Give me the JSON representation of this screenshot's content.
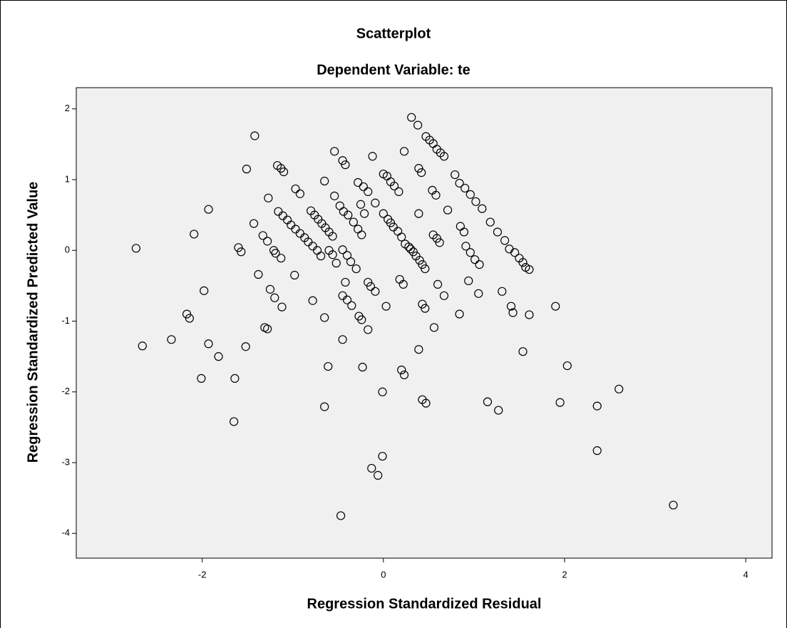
{
  "chart_data": {
    "type": "scatter",
    "title": "Scatterplot",
    "subtitle": "Dependent Variable: te",
    "x_label": "Regression Standardized Residual",
    "y_label": "Regression Standardized Predicted Value",
    "color": "#000000",
    "background": "#f0f0f0",
    "grid": false,
    "xlim": [
      -3.39,
      4.29
    ],
    "ylim": [
      -4.35,
      2.3
    ],
    "xticks": [
      -2,
      0,
      2,
      4
    ],
    "yticks": [
      -4,
      -3,
      -2,
      -1,
      0,
      1,
      2
    ],
    "x": [
      -2.73,
      -2.66,
      -2.34,
      -2.09,
      -1.93,
      -2.17,
      -2.14,
      -1.98,
      -1.93,
      -1.82,
      -2.01,
      -1.64,
      -1.65,
      -1.52,
      -1.6,
      -1.57,
      -1.42,
      -1.51,
      -1.43,
      -1.38,
      -1.33,
      -1.28,
      -1.27,
      -1.25,
      -1.2,
      -1.12,
      -1.31,
      -1.28,
      -1.21,
      -1.19,
      -1.13,
      -1.17,
      -1.13,
      -1.1,
      -1.16,
      -1.11,
      -1.06,
      -1.02,
      -0.97,
      -0.92,
      -0.87,
      -0.83,
      -0.78,
      -0.73,
      -0.69,
      -0.98,
      -0.97,
      -0.92,
      -0.78,
      -0.8,
      -0.76,
      -0.72,
      -0.68,
      -0.64,
      -0.6,
      -0.56,
      -0.6,
      -0.56,
      -0.52,
      -0.65,
      -0.54,
      -0.45,
      -0.42,
      -0.65,
      -0.61,
      -0.65,
      -0.45,
      -0.47,
      -0.54,
      -0.48,
      -0.44,
      -0.39,
      -0.33,
      -0.28,
      -0.24,
      -0.45,
      -0.4,
      -0.36,
      -0.3,
      -0.45,
      -0.4,
      -0.35,
      -0.27,
      -0.24,
      -0.23,
      -0.42,
      -0.28,
      -0.22,
      -0.17,
      -0.25,
      -0.21,
      -0.17,
      -0.14,
      -0.09,
      -0.17,
      -0.12,
      0.0,
      0.04,
      0.08,
      0.12,
      0.17,
      -0.09,
      0.0,
      0.05,
      0.08,
      0.11,
      0.16,
      0.2,
      0.24,
      0.28,
      0.3,
      0.33,
      0.36,
      0.4,
      0.43,
      0.46,
      0.03,
      -0.01,
      -0.01,
      -0.13,
      -0.06,
      0.18,
      0.22,
      0.2,
      0.23,
      0.23,
      0.31,
      0.38,
      0.39,
      0.42,
      0.39,
      0.47,
      0.51,
      0.55,
      0.59,
      0.63,
      0.67,
      0.54,
      0.58,
      0.71,
      0.55,
      0.59,
      0.62,
      0.43,
      0.46,
      0.39,
      0.43,
      0.47,
      0.6,
      0.67,
      0.56,
      0.79,
      0.84,
      0.9,
      0.96,
      1.02,
      1.09,
      1.18,
      1.26,
      1.34,
      1.39,
      1.45,
      1.5,
      1.54,
      1.57,
      1.61,
      0.85,
      0.89,
      0.91,
      0.96,
      1.01,
      1.06,
      0.94,
      0.84,
      1.05,
      1.15,
      1.27,
      1.31,
      1.41,
      1.43,
      1.61,
      1.54,
      1.9,
      2.03,
      1.95,
      2.36,
      2.36,
      2.6,
      3.2
    ],
    "values": [
      0.03,
      -1.35,
      -1.26,
      0.23,
      0.58,
      -0.9,
      -0.96,
      -0.57,
      -1.32,
      -1.5,
      -1.81,
      -1.81,
      -2.42,
      -1.36,
      0.04,
      -0.02,
      1.62,
      1.15,
      0.38,
      -0.34,
      0.21,
      0.13,
      0.74,
      -0.55,
      -0.67,
      -0.8,
      -1.09,
      -1.11,
      0.0,
      -0.04,
      -0.11,
      1.2,
      1.16,
      1.11,
      0.55,
      0.49,
      0.43,
      0.36,
      0.3,
      0.24,
      0.18,
      0.12,
      0.06,
      0.0,
      -0.08,
      -0.35,
      0.87,
      0.8,
      -0.71,
      0.56,
      0.5,
      0.44,
      0.38,
      0.32,
      0.26,
      0.2,
      0.0,
      -0.06,
      -0.18,
      0.98,
      1.4,
      1.27,
      1.21,
      -0.95,
      -1.64,
      -2.21,
      -1.26,
      -3.75,
      0.77,
      0.63,
      0.55,
      0.5,
      0.4,
      0.3,
      0.22,
      0.01,
      -0.07,
      -0.16,
      -0.26,
      -0.64,
      -0.7,
      -0.78,
      -0.93,
      -0.98,
      -1.65,
      -0.45,
      0.96,
      0.9,
      0.83,
      0.65,
      0.52,
      -0.45,
      -0.51,
      -0.58,
      -1.12,
      1.33,
      1.08,
      1.05,
      0.97,
      0.91,
      0.83,
      0.67,
      0.52,
      0.44,
      0.39,
      0.33,
      0.27,
      0.19,
      0.09,
      0.05,
      0.02,
      -0.02,
      -0.08,
      -0.14,
      -0.2,
      -0.26,
      -0.79,
      -2.0,
      -2.91,
      -3.08,
      -3.18,
      -0.41,
      -0.48,
      -1.69,
      -1.76,
      1.4,
      1.88,
      1.77,
      1.16,
      1.1,
      0.52,
      1.61,
      1.56,
      1.51,
      1.43,
      1.38,
      1.33,
      0.85,
      0.78,
      0.57,
      0.22,
      0.17,
      0.11,
      -0.76,
      -0.82,
      -1.4,
      -2.11,
      -2.16,
      -0.48,
      -0.64,
      -1.09,
      1.07,
      0.95,
      0.88,
      0.79,
      0.69,
      0.59,
      0.4,
      0.26,
      0.14,
      0.02,
      -0.03,
      -0.11,
      -0.17,
      -0.24,
      -0.27,
      0.34,
      0.26,
      0.06,
      -0.03,
      -0.13,
      -0.2,
      -0.43,
      -0.9,
      -0.61,
      -2.14,
      -2.26,
      -0.58,
      -0.79,
      -0.88,
      -0.91,
      -1.43,
      -0.79,
      -1.63,
      -2.15,
      -2.2,
      -2.83,
      -1.96,
      -3.6
    ]
  }
}
